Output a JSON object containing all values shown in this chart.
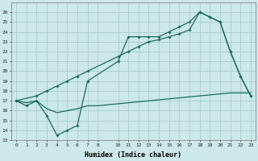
{
  "title": "",
  "xlabel": "Humidex (Indice chaleur)",
  "bg_color": "#cce8e8",
  "grid_color": "#aacccc",
  "line_color": "#1a6b60",
  "xlim": [
    -0.5,
    23.5
  ],
  "ylim": [
    13,
    27
  ],
  "yticks": [
    13,
    14,
    15,
    16,
    17,
    18,
    19,
    20,
    21,
    22,
    23,
    24,
    25,
    26
  ],
  "xticks": [
    0,
    1,
    2,
    3,
    4,
    5,
    6,
    7,
    8,
    10,
    11,
    12,
    13,
    14,
    15,
    16,
    17,
    18,
    19,
    20,
    21,
    22,
    23
  ],
  "line1_x": [
    0,
    1,
    2,
    3,
    4,
    5,
    6,
    7,
    10,
    11,
    12,
    13,
    14,
    15,
    16,
    17,
    18,
    19,
    20,
    21,
    22,
    23
  ],
  "line1_y": [
    17,
    16.5,
    17,
    15.5,
    13.5,
    14,
    14.5,
    19,
    21,
    23.5,
    23.5,
    23.5,
    23.5,
    24,
    24.5,
    25,
    26,
    25.5,
    25,
    22,
    19.5,
    17.5
  ],
  "line2_x": [
    0,
    2,
    3,
    4,
    5,
    6,
    7,
    10,
    11,
    12,
    13,
    14,
    15,
    16,
    17,
    18,
    19,
    20,
    21,
    22,
    23
  ],
  "line2_y": [
    17,
    17.5,
    18,
    18.5,
    19,
    19.5,
    20,
    21.5,
    22,
    22.5,
    23,
    23.2,
    23.5,
    23.8,
    24.2,
    26,
    25.5,
    25,
    22,
    19.5,
    17.5
  ],
  "line3_x": [
    0,
    1,
    2,
    3,
    4,
    5,
    6,
    7,
    8,
    10,
    11,
    12,
    13,
    14,
    15,
    16,
    17,
    18,
    19,
    20,
    21,
    22,
    23
  ],
  "line3_y": [
    17,
    16.8,
    17,
    16.2,
    15.8,
    16,
    16.2,
    16.5,
    16.5,
    16.7,
    16.8,
    16.9,
    17,
    17.1,
    17.2,
    17.3,
    17.4,
    17.5,
    17.6,
    17.7,
    17.8,
    17.8,
    17.8
  ]
}
